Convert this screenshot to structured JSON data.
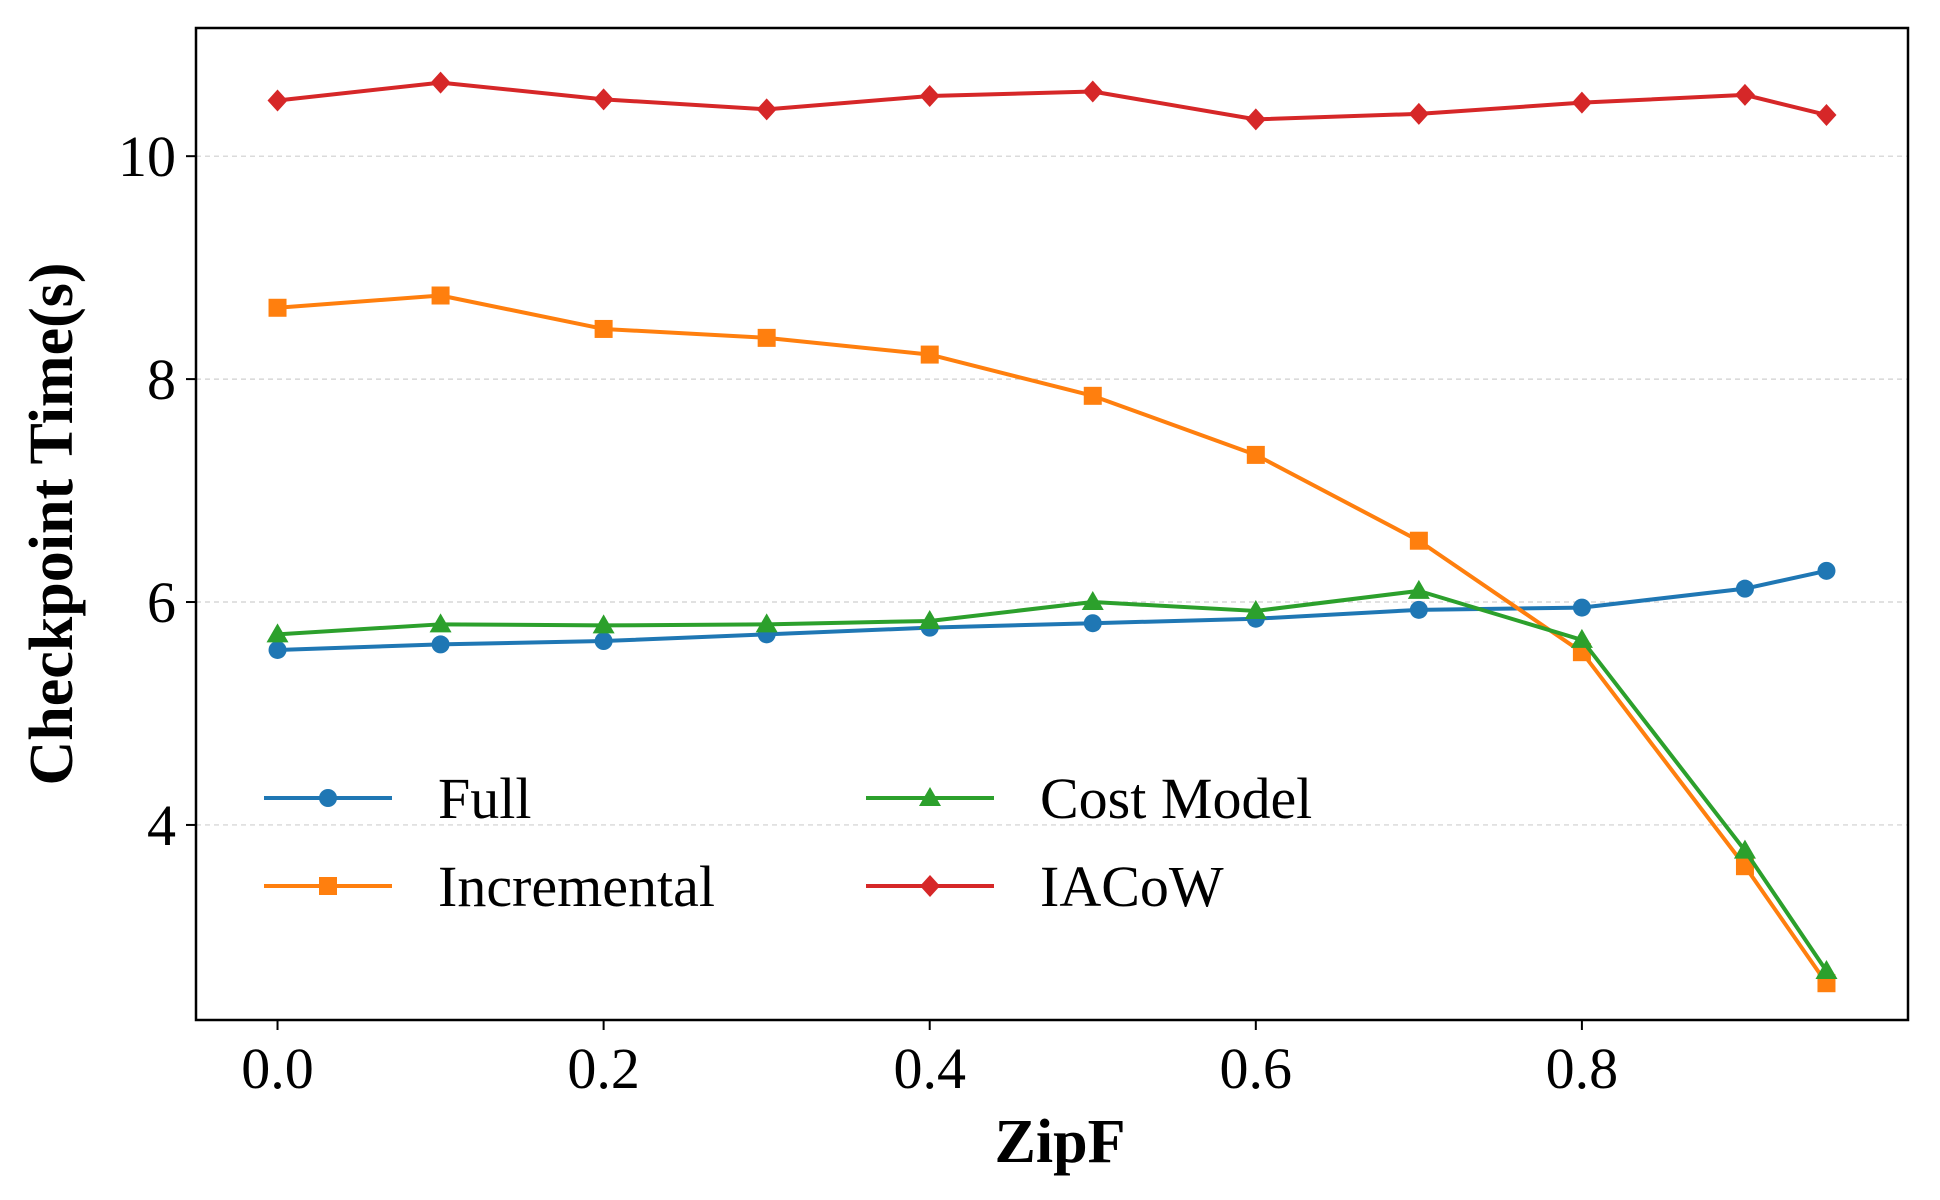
{
  "chart_data": {
    "type": "line",
    "title": "",
    "xlabel": "ZipF",
    "ylabel": "Checkpoint Time(s)",
    "x": [
      0.0,
      0.1,
      0.2,
      0.3,
      0.4,
      0.5,
      0.6,
      0.7,
      0.8,
      0.9,
      0.95
    ],
    "xlim": [
      -0.05,
      1.0
    ],
    "ylim": [
      2.25,
      11.15
    ],
    "xticks": [
      0.0,
      0.2,
      0.4,
      0.6,
      0.8
    ],
    "xtick_labels": [
      "0.0",
      "0.2",
      "0.4",
      "0.6",
      "0.8"
    ],
    "yticks": [
      4,
      6,
      8,
      10
    ],
    "ytick_labels": [
      "4",
      "6",
      "8",
      "10"
    ],
    "grid": "horizontal dashed",
    "legend_position": "lower-left, two columns",
    "series": [
      {
        "name": "Full",
        "color": "#1f77b4",
        "marker": "circle",
        "values": [
          5.57,
          5.62,
          5.65,
          5.71,
          5.77,
          5.81,
          5.85,
          5.93,
          5.95,
          6.12,
          6.28
        ]
      },
      {
        "name": "Incremental",
        "color": "#ff7f0e",
        "marker": "square",
        "values": [
          8.64,
          8.75,
          8.45,
          8.37,
          8.22,
          7.85,
          7.32,
          6.55,
          5.55,
          3.63,
          2.58
        ]
      },
      {
        "name": "Cost Model",
        "color": "#2ca02c",
        "marker": "triangle",
        "values": [
          5.71,
          5.8,
          5.79,
          5.8,
          5.83,
          6.0,
          5.92,
          6.1,
          5.66,
          3.77,
          2.69
        ]
      },
      {
        "name": "IACoW",
        "color": "#d62728",
        "marker": "diamond",
        "values": [
          10.5,
          10.66,
          10.51,
          10.42,
          10.54,
          10.58,
          10.33,
          10.38,
          10.48,
          10.55,
          10.37
        ]
      }
    ]
  }
}
